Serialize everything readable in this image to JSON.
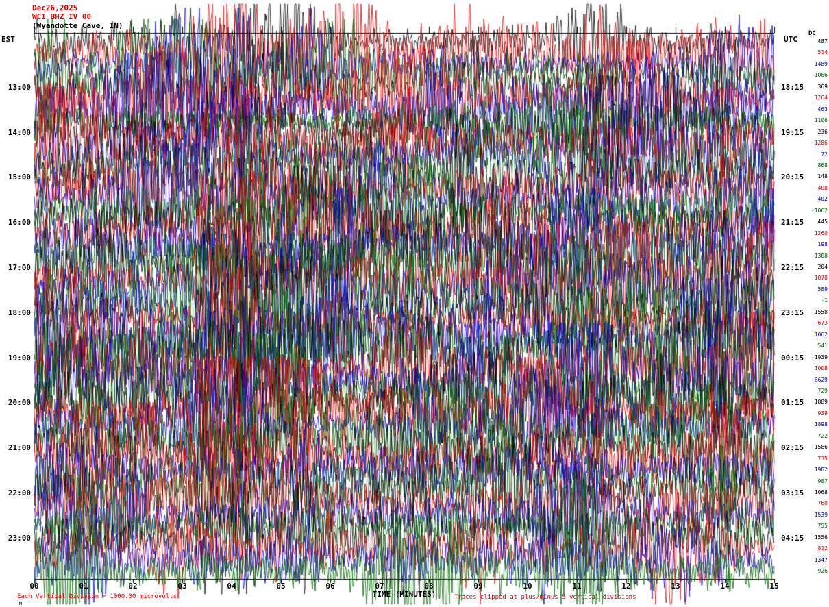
{
  "header": {
    "date": "Dec26,2025",
    "station": "WCI BHZ IV 00",
    "location": "(Wyandotte Cave, IN)"
  },
  "footer": {
    "division_note": "Each Vertical Division = 1000.00 microvolts",
    "clip_note": "Traces clipped at plus/minus 5 vertical divisions",
    "watermark": "M"
  },
  "chart_data": {
    "type": "line",
    "subtype": "seismogram_helicorder",
    "title": "WCI BHZ IV 00 (Wyandotte Cave, IN) Dec26,2025",
    "xlabel": "TIME (MINUTES)",
    "x_ticks": [
      "00",
      "01",
      "02",
      "03",
      "04",
      "05",
      "06",
      "07",
      "08",
      "09",
      "10",
      "11",
      "12",
      "13",
      "14",
      "15"
    ],
    "x_range_minutes": [
      0,
      15
    ],
    "minutes_per_row": 15,
    "rows": 48,
    "row_start_time_est": "12:00",
    "left_axis": {
      "label": "EST",
      "ticks": [
        "13:00",
        "14:00",
        "15:00",
        "16:00",
        "17:00",
        "18:00",
        "19:00",
        "20:00",
        "21:00",
        "22:00",
        "23:00"
      ]
    },
    "right_axis": {
      "label": "UTC",
      "ticks": [
        "18:15",
        "19:15",
        "20:15",
        "21:15",
        "22:15",
        "23:15",
        "00:15",
        "01:15",
        "02:15",
        "03:15",
        "04:15"
      ]
    },
    "dc_header": "DC",
    "dc_values": [
      "487",
      "514",
      "1489",
      "1066",
      "369",
      "1264",
      "463",
      "1106",
      "236",
      "1286",
      "72",
      "868",
      "148",
      "408",
      "402",
      "-1062",
      "445",
      "1260",
      "198",
      "1308",
      "204",
      "1870",
      "589",
      "-1",
      "1558",
      "673",
      "1062",
      "541",
      "-1939",
      "1008",
      "-8629",
      "729",
      "1889",
      "939",
      "1898",
      "722",
      "1586",
      "735",
      "1982",
      "987",
      "1068",
      "760",
      "1539",
      "755",
      "1556",
      "812",
      "1347",
      "926"
    ],
    "trace_colors": [
      "#000000",
      "#dd0000",
      "#0000cc",
      "#006600"
    ],
    "clip_divisions": 5,
    "division_microvolts": 1000.0,
    "grid": false,
    "waveform_description": "continuous high-amplitude broadband noise on every 15-minute trace row; traces heavily overlap adjacent rows and are clipped at plus/minus 5 vertical divisions"
  }
}
